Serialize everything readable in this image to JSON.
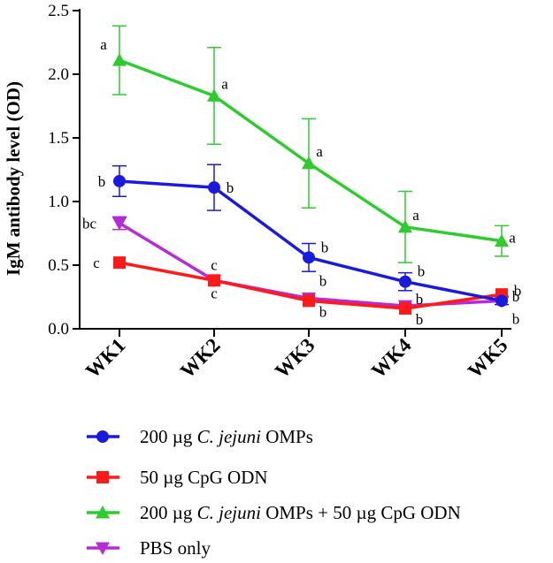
{
  "chart_data": {
    "type": "line",
    "title": "",
    "xlabel": "",
    "ylabel": "IgM antibody level (OD)",
    "categories": [
      "WK1",
      "WK2",
      "WK3",
      "WK4",
      "WK5"
    ],
    "ylim": [
      0,
      2.5
    ],
    "yticks": [
      "0.0",
      "0.5",
      "1.0",
      "1.5",
      "2.0",
      "2.5"
    ],
    "grid": false,
    "legend_position": "bottom",
    "series": [
      {
        "name": "200 µg C. jejuni OMPs",
        "legend_parts": [
          "200 µg ",
          "C. jejuni",
          " OMPs"
        ],
        "color": "#1a1adf",
        "marker": "circle",
        "values": [
          1.16,
          1.11,
          0.56,
          0.37,
          0.22
        ],
        "errors": [
          0.12,
          0.18,
          0.11,
          0.07,
          0.03
        ],
        "labels": [
          "b",
          "b",
          "b",
          "b",
          "b"
        ]
      },
      {
        "name": "50 µg CpG ODN",
        "legend_parts": [
          "50 µg CpG ODN"
        ],
        "color": "#ff1a1a",
        "marker": "square",
        "values": [
          0.52,
          0.38,
          0.22,
          0.16,
          0.27
        ],
        "errors": [
          0.0,
          0.0,
          0.0,
          0.0,
          0.0
        ],
        "labels": [
          "c",
          "c",
          "b",
          "b",
          "b"
        ]
      },
      {
        "name": "200 µg C. jejuni OMPs + 50 µg CpG ODN",
        "legend_parts": [
          "200 µg ",
          "C. jejuni",
          " OMPs + 50 µg CpG ODN"
        ],
        "color": "#2ecc2e",
        "marker": "triangle-up",
        "values": [
          2.11,
          1.83,
          1.3,
          0.8,
          0.69
        ],
        "errors": [
          0.27,
          0.38,
          0.35,
          0.28,
          0.12
        ],
        "labels": [
          "a",
          "a",
          "a",
          "a",
          "a"
        ]
      },
      {
        "name": "PBS only",
        "legend_parts": [
          "PBS only"
        ],
        "color": "#b52bd6",
        "marker": "triangle-down",
        "values": [
          0.83,
          0.38,
          0.24,
          0.18,
          0.22
        ],
        "errors": [
          0.05,
          0.0,
          0.0,
          0.0,
          0.0
        ],
        "labels": [
          "bc",
          "c",
          "b",
          "b",
          "b"
        ]
      }
    ]
  }
}
